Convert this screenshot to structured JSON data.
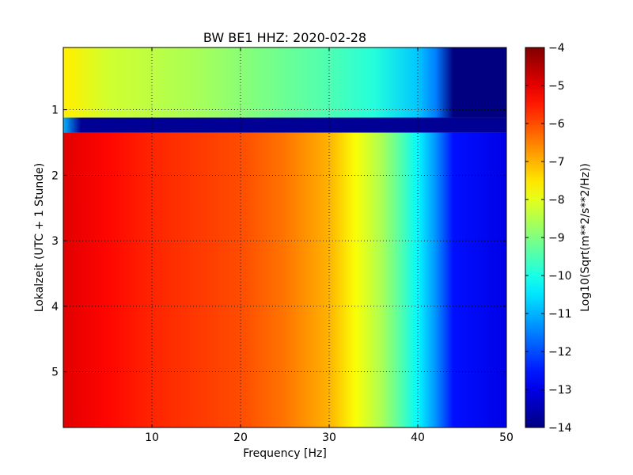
{
  "chart_data": {
    "type": "heatmap",
    "title": "BW BE1 HHZ: 2020-02-28",
    "xlabel": "Frequency [Hz]",
    "ylabel": "Lokalzeit (UTC + 1 Stunde)",
    "xlim": [
      0,
      50
    ],
    "ylim": [
      5.85,
      0.05
    ],
    "x_ticks": [
      10,
      20,
      30,
      40,
      50
    ],
    "y_ticks": [
      1,
      2,
      3,
      4,
      5
    ],
    "grid": true,
    "colormap": "jet",
    "colorbar": {
      "label": "Log10(Sqrt(m**2/s**2/Hz))",
      "range": [
        -14,
        -4
      ],
      "ticks": [
        -4,
        -5,
        -6,
        -7,
        -8,
        -9,
        -10,
        -11,
        -12,
        -13,
        -14
      ]
    },
    "time_bands": [
      {
        "from": 0.05,
        "to": 1.12,
        "freq_hz": [
          0.5,
          5,
          10,
          15,
          20,
          25,
          30,
          35,
          40,
          42,
          44,
          45,
          50
        ],
        "log_amplitude": [
          -7.6,
          -8.2,
          -8.4,
          -8.6,
          -8.9,
          -9.2,
          -9.5,
          -9.9,
          -10.8,
          -11.5,
          -14.0,
          -14.0,
          -14.0
        ]
      },
      {
        "from": 1.12,
        "to": 1.35,
        "freq_hz": [
          0,
          2,
          50
        ],
        "log_amplitude": [
          -11.0,
          -13.8,
          -13.8
        ]
      },
      {
        "from": 1.35,
        "to": 5.85,
        "freq_hz": [
          0.5,
          5,
          10,
          15,
          20,
          25,
          30,
          33,
          36,
          38,
          40,
          42,
          44,
          50
        ],
        "log_amplitude": [
          -5.0,
          -5.3,
          -5.6,
          -5.8,
          -6.0,
          -6.4,
          -7.0,
          -7.8,
          -8.6,
          -9.4,
          -10.3,
          -11.3,
          -12.6,
          -13.0
        ]
      }
    ]
  }
}
